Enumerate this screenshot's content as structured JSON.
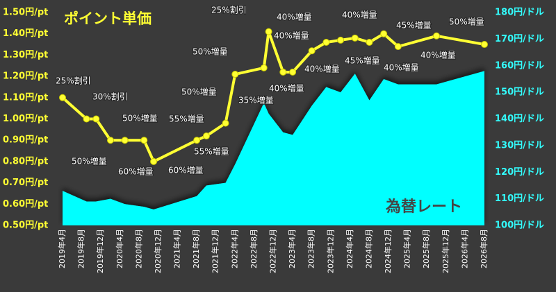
{
  "chart_data": {
    "type": "line-area",
    "x": [
      "2019-04",
      "2019-09",
      "2019-11",
      "2020-02",
      "2020-05",
      "2020-09",
      "2020-11",
      "2021-08",
      "2021-10",
      "2022-02",
      "2022-04",
      "2022-10",
      "2022-11",
      "2023-02",
      "2023-04",
      "2023-08",
      "2023-11",
      "2024-02",
      "2024-05",
      "2024-08",
      "2024-11",
      "2025-02",
      "2025-10",
      "2026-08"
    ],
    "xlim": [
      "2019-04",
      "2026-08"
    ],
    "xticks": [
      {
        "value": "2019-04",
        "label": "2019年4月"
      },
      {
        "value": "2019-08",
        "label": "2019年8月"
      },
      {
        "value": "2019-12",
        "label": "2019年12月"
      },
      {
        "value": "2020-04",
        "label": "2020年4月"
      },
      {
        "value": "2020-08",
        "label": "2020年8月"
      },
      {
        "value": "2020-12",
        "label": "2020年12月"
      },
      {
        "value": "2021-04",
        "label": "2021年4月"
      },
      {
        "value": "2021-08",
        "label": "2021年8月"
      },
      {
        "value": "2021-12",
        "label": "2021年12月"
      },
      {
        "value": "2022-04",
        "label": "2022年4月"
      },
      {
        "value": "2022-08",
        "label": "2022年8月"
      },
      {
        "value": "2022-12",
        "label": "2022年12月"
      },
      {
        "value": "2023-04",
        "label": "2023年4月"
      },
      {
        "value": "2023-08",
        "label": "2023年8月"
      },
      {
        "value": "2023-12",
        "label": "2023年12月"
      },
      {
        "value": "2024-04",
        "label": "2024年4月"
      },
      {
        "value": "2024-08",
        "label": "2024年8月"
      },
      {
        "value": "2024-12",
        "label": "2024年12月"
      },
      {
        "value": "2025-04",
        "label": "2025年4月"
      },
      {
        "value": "2025-08",
        "label": "2025年8月"
      },
      {
        "value": "2025-12",
        "label": "2025年12月"
      },
      {
        "value": "2026-04",
        "label": "2026年4月"
      },
      {
        "value": "2026-08",
        "label": "2026年8月"
      }
    ],
    "ylim": [
      0.5,
      1.5
    ],
    "yticks": [
      {
        "value": 0.5,
        "label": "0.50円/pt"
      },
      {
        "value": 0.6,
        "label": "0.60円/pt"
      },
      {
        "value": 0.7,
        "label": "0.70円/pt"
      },
      {
        "value": 0.8,
        "label": "0.80円/pt"
      },
      {
        "value": 0.9,
        "label": "0.90円/pt"
      },
      {
        "value": 1.0,
        "label": "1.00円/pt"
      },
      {
        "value": 1.1,
        "label": "1.10円/pt"
      },
      {
        "value": 1.2,
        "label": "1.20円/pt"
      },
      {
        "value": 1.3,
        "label": "1.30円/pt"
      },
      {
        "value": 1.4,
        "label": "1.40円/pt"
      },
      {
        "value": 1.5,
        "label": "1.50円/pt"
      }
    ],
    "y2lim": [
      100,
      180
    ],
    "y2ticks": [
      {
        "value": 100,
        "label": "100円/ドル"
      },
      {
        "value": 110,
        "label": "110円/ドル"
      },
      {
        "value": 120,
        "label": "120円/ドル"
      },
      {
        "value": 130,
        "label": "130円/ドル"
      },
      {
        "value": 140,
        "label": "140円/ドル"
      },
      {
        "value": 150,
        "label": "150円/ドル"
      },
      {
        "value": 160,
        "label": "160円/ドル"
      },
      {
        "value": 170,
        "label": "170円/ドル"
      },
      {
        "value": 180,
        "label": "180円/ドル"
      }
    ],
    "series": [
      {
        "name": "ポイント単価",
        "color": "#ffff33",
        "values": [
          1.1,
          1.0,
          1.0,
          0.9,
          0.9,
          0.9,
          0.8,
          0.9,
          0.92,
          0.98,
          1.21,
          1.24,
          1.41,
          1.22,
          1.22,
          1.32,
          1.36,
          1.37,
          1.38,
          1.36,
          1.4,
          1.34,
          1.39,
          1.35
        ]
      },
      {
        "name": "為替レート",
        "color": "#00ffff",
        "axis": "y2",
        "values": [
          113,
          109,
          109,
          110,
          108,
          107,
          106,
          111,
          115,
          116,
          123,
          146,
          142,
          135,
          134,
          145,
          152,
          150,
          157,
          147,
          155,
          153,
          153,
          158
        ]
      }
    ],
    "annotations": [
      "25%割引",
      "30%割引",
      "50%増量",
      "60%増量",
      "50%増量",
      "60%増量",
      "55%増量",
      "50%増量",
      "55%増量",
      "50%増量",
      "35%増量",
      "25%割引",
      "40%増量",
      "40%増量",
      "40%増量",
      "40%増量",
      "40%増量",
      "45%増量",
      "40%増量",
      "45%増量",
      "40%増量",
      "50%増量"
    ]
  }
}
